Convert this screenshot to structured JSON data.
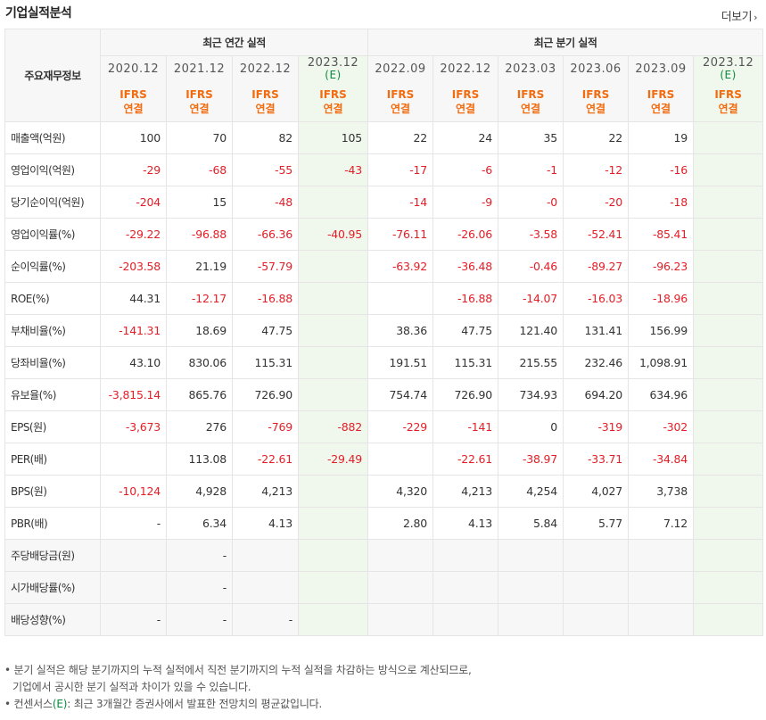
{
  "header": {
    "title": "기업실적분석",
    "more_label": "더보기",
    "more_icon": "chevron-right-icon"
  },
  "table": {
    "row_header": "주요재무정보",
    "groups": {
      "annual": "최근 연간 실적",
      "quarterly": "최근 분기 실적"
    },
    "estimate_tag": "(E)",
    "standard": {
      "line1": "IFRS",
      "line2": "연결"
    },
    "periods": [
      {
        "label": "2020.12",
        "estimate": false
      },
      {
        "label": "2021.12",
        "estimate": false
      },
      {
        "label": "2022.12",
        "estimate": false
      },
      {
        "label": "2023.12",
        "estimate": true
      },
      {
        "label": "2022.09",
        "estimate": false
      },
      {
        "label": "2022.12",
        "estimate": false
      },
      {
        "label": "2023.03",
        "estimate": false
      },
      {
        "label": "2023.06",
        "estimate": false
      },
      {
        "label": "2023.09",
        "estimate": false
      },
      {
        "label": "2023.12",
        "estimate": true
      }
    ],
    "rows": [
      {
        "label": "매출액(억원)",
        "values": [
          "100",
          "70",
          "82",
          "105",
          "22",
          "24",
          "35",
          "22",
          "19",
          ""
        ]
      },
      {
        "label": "영업이익(억원)",
        "values": [
          "-29",
          "-68",
          "-55",
          "-43",
          "-17",
          "-6",
          "-1",
          "-12",
          "-16",
          ""
        ]
      },
      {
        "label": "당기순이익(억원)",
        "values": [
          "-204",
          "15",
          "-48",
          "",
          "-14",
          "-9",
          "-0",
          "-20",
          "-18",
          ""
        ]
      },
      {
        "label": "영업이익률(%)",
        "values": [
          "-29.22",
          "-96.88",
          "-66.36",
          "-40.95",
          "-76.11",
          "-26.06",
          "-3.58",
          "-52.41",
          "-85.41",
          ""
        ]
      },
      {
        "label": "순이익률(%)",
        "values": [
          "-203.58",
          "21.19",
          "-57.79",
          "",
          "-63.92",
          "-36.48",
          "-0.46",
          "-89.27",
          "-96.23",
          ""
        ]
      },
      {
        "label": "ROE(%)",
        "values": [
          "44.31",
          "-12.17",
          "-16.88",
          "",
          "",
          "-16.88",
          "-14.07",
          "-16.03",
          "-18.96",
          ""
        ]
      },
      {
        "label": "부채비율(%)",
        "values": [
          "-141.31",
          "18.69",
          "47.75",
          "",
          "38.36",
          "47.75",
          "121.40",
          "131.41",
          "156.99",
          ""
        ]
      },
      {
        "label": "당좌비율(%)",
        "values": [
          "43.10",
          "830.06",
          "115.31",
          "",
          "191.51",
          "115.31",
          "215.55",
          "232.46",
          "1,098.91",
          ""
        ]
      },
      {
        "label": "유보율(%)",
        "values": [
          "-3,815.14",
          "865.76",
          "726.90",
          "",
          "754.74",
          "726.90",
          "734.93",
          "694.20",
          "634.96",
          ""
        ]
      },
      {
        "label": "EPS(원)",
        "values": [
          "-3,673",
          "276",
          "-769",
          "-882",
          "-229",
          "-141",
          "0",
          "-319",
          "-302",
          ""
        ]
      },
      {
        "label": "PER(배)",
        "values": [
          "",
          "113.08",
          "-22.61",
          "-29.49",
          "",
          "-22.61",
          "-38.97",
          "-33.71",
          "-34.84",
          ""
        ]
      },
      {
        "label": "BPS(원)",
        "values": [
          "-10,124",
          "4,928",
          "4,213",
          "",
          "4,320",
          "4,213",
          "4,254",
          "4,027",
          "3,738",
          ""
        ]
      },
      {
        "label": "PBR(배)",
        "values": [
          "-",
          "6.34",
          "4.13",
          "",
          "2.80",
          "4.13",
          "5.84",
          "5.77",
          "7.12",
          ""
        ]
      },
      {
        "label": "주당배당금(원)",
        "values": [
          "",
          "-",
          "",
          "",
          "",
          "",
          "",
          "",
          "",
          ""
        ]
      },
      {
        "label": "시가배당률(%)",
        "values": [
          "",
          "-",
          "",
          "",
          "",
          "",
          "",
          "",
          "",
          ""
        ]
      },
      {
        "label": "배당성향(%)",
        "values": [
          "-",
          "-",
          "-",
          "",
          "",
          "",
          "",
          "",
          "",
          ""
        ]
      }
    ]
  },
  "notes": {
    "line1": "분기 실적은 해당 분기까지의 누적 실적에서 직전 분기까지의 누적 실적을 차감하는 방식으로 계산되므로,",
    "line2": "기업에서 공시한 분기 실적과 차이가 있을 수 있습니다.",
    "line3_prefix": "컨센서스",
    "line3_tag": "(E)",
    "line3_suffix": ": 최근 3개월간 증권사에서 발표한 전망치의 평균값입니다."
  },
  "colors": {
    "negative": "#e41e26",
    "ifrs": "#f26b0e",
    "estimate_bg": "#f0f8ee",
    "estimate_text": "#0a8a3e"
  }
}
